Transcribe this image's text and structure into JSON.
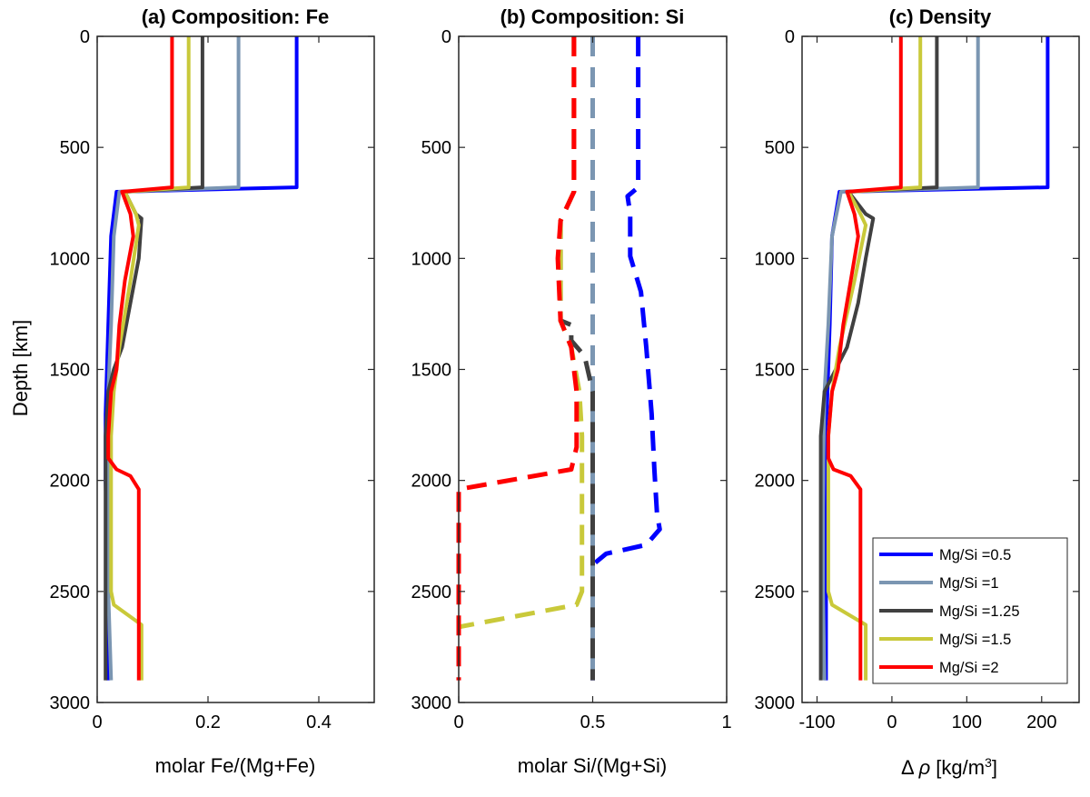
{
  "ylabel": "Depth [km]",
  "colors": {
    "Mg/Si =0.5": "#0000ff",
    "Mg/Si =1": "#7b96b2",
    "Mg/Si =1.25": "#404040",
    "Mg/Si =1.5": "#c9c93a",
    "Mg/Si =2": "#ff0000"
  },
  "legend": {
    "placement": "bottom-right of panel (c)",
    "entries": [
      "Mg/Si =0.5",
      "Mg/Si =1",
      "Mg/Si =1.25",
      "Mg/Si =1.5",
      "Mg/Si =2"
    ]
  },
  "chart_data": [
    {
      "type": "line",
      "title": "(a) Composition: Fe",
      "xlabel": "molar Fe/(Mg+Fe)",
      "ylabel": "Depth [km]",
      "xlim": [
        0,
        0.5
      ],
      "ylim": [
        0,
        3000
      ],
      "y_reversed": true,
      "xticks": [
        0,
        0.2,
        0.4
      ],
      "xtick_labels": [
        "0",
        "0.2",
        "0.4"
      ],
      "yticks": [
        0,
        500,
        1000,
        1500,
        2000,
        2500,
        3000
      ],
      "ytick_labels": [
        "0",
        "500",
        "1000",
        "1500",
        "2000",
        "2500",
        "3000"
      ],
      "dashed": false,
      "series": [
        {
          "name": "Mg/Si =0.5",
          "x": [
            0.36,
            0.36,
            0.035,
            0.025,
            0.02,
            0.015,
            0.015,
            0.02,
            0.02
          ],
          "y": [
            0,
            680,
            700,
            900,
            1300,
            1700,
            2000,
            2500,
            2900
          ]
        },
        {
          "name": "Mg/Si =1",
          "x": [
            0.255,
            0.255,
            0.04,
            0.03,
            0.025,
            0.02,
            0.02,
            0.02,
            0.025
          ],
          "y": [
            0,
            680,
            700,
            900,
            1300,
            1600,
            2000,
            2500,
            2900
          ]
        },
        {
          "name": "Mg/Si =1.25",
          "x": [
            0.19,
            0.19,
            0.05,
            0.07,
            0.08,
            0.075,
            0.06,
            0.045,
            0.03,
            0.02,
            0.015,
            0.015,
            0.015
          ],
          "y": [
            0,
            680,
            700,
            800,
            820,
            1000,
            1200,
            1400,
            1500,
            1600,
            1800,
            2400,
            2900
          ]
        },
        {
          "name": "Mg/Si =1.5",
          "x": [
            0.165,
            0.165,
            0.05,
            0.07,
            0.075,
            0.06,
            0.04,
            0.03,
            0.025,
            0.025,
            0.03,
            0.08,
            0.08
          ],
          "y": [
            0,
            680,
            700,
            800,
            850,
            1100,
            1400,
            1600,
            1800,
            2500,
            2560,
            2650,
            2900
          ]
        },
        {
          "name": "Mg/Si =2",
          "x": [
            0.135,
            0.135,
            0.045,
            0.06,
            0.065,
            0.05,
            0.04,
            0.035,
            0.025,
            0.02,
            0.02,
            0.035,
            0.06,
            0.075,
            0.075
          ],
          "y": [
            0,
            680,
            700,
            800,
            900,
            1100,
            1300,
            1500,
            1600,
            1800,
            1900,
            1950,
            1980,
            2040,
            2900
          ]
        }
      ]
    },
    {
      "type": "line",
      "title": "(b) Composition: Si",
      "xlabel": "molar Si/(Mg+Si)",
      "ylabel": "",
      "xlim": [
        0,
        1
      ],
      "ylim": [
        0,
        3000
      ],
      "y_reversed": true,
      "xticks": [
        0,
        0.5,
        1
      ],
      "xtick_labels": [
        "0",
        "0.5",
        "1"
      ],
      "yticks": [
        0,
        500,
        1000,
        1500,
        2000,
        2500,
        3000
      ],
      "ytick_labels": [
        "0",
        "500",
        "1000",
        "1500",
        "2000",
        "2500",
        "3000"
      ],
      "dashed": true,
      "series": [
        {
          "name": "Mg/Si =0.5",
          "x": [
            0.67,
            0.67,
            0.63,
            0.64,
            0.64,
            0.68,
            0.7,
            0.72,
            0.73,
            0.74,
            0.75,
            0.7,
            0.55,
            0.5,
            0.5
          ],
          "y": [
            0,
            680,
            720,
            800,
            990,
            1150,
            1400,
            1700,
            1950,
            2150,
            2220,
            2290,
            2330,
            2380,
            2900
          ]
        },
        {
          "name": "Mg/Si =1",
          "x": [
            0.5,
            0.5,
            0.5
          ],
          "y": [
            0,
            1500,
            2900
          ]
        },
        {
          "name": "Mg/Si =1.25",
          "x": [
            0.43,
            0.43,
            0.38,
            0.38,
            0.42,
            0.42,
            0.47,
            0.5,
            0.5
          ],
          "y": [
            0,
            700,
            830,
            1280,
            1300,
            1370,
            1440,
            1600,
            2900
          ]
        },
        {
          "name": "Mg/Si =1.5",
          "x": [
            0.43,
            0.43,
            0.38,
            0.38,
            0.42,
            0.45,
            0.46,
            0.46,
            0.44,
            0.0
          ],
          "y": [
            0,
            700,
            830,
            1280,
            1400,
            1600,
            1800,
            2500,
            2560,
            2660
          ]
        },
        {
          "name": "Mg/Si =2",
          "x": [
            0.43,
            0.43,
            0.38,
            0.37,
            0.38,
            0.42,
            0.44,
            0.44,
            0.42,
            0.0,
            0.0
          ],
          "y": [
            0,
            700,
            830,
            1000,
            1280,
            1400,
            1600,
            1850,
            1950,
            2040,
            2900
          ]
        }
      ]
    },
    {
      "type": "line",
      "title": "(c) Density",
      "xlabel": "Δ ρ [kg/m3]",
      "ylabel": "",
      "xlim": [
        -120,
        250
      ],
      "ylim": [
        0,
        3000
      ],
      "y_reversed": true,
      "xticks": [
        -100,
        0,
        100,
        200
      ],
      "xtick_labels": [
        "-100",
        "0",
        "100",
        "200"
      ],
      "yticks": [
        0,
        500,
        1000,
        1500,
        2000,
        2500,
        3000
      ],
      "ytick_labels": [
        "0",
        "500",
        "1000",
        "1500",
        "2000",
        "2500",
        "3000"
      ],
      "dashed": false,
      "series": [
        {
          "name": "Mg/Si =0.5",
          "x": [
            208,
            208,
            -70,
            -80,
            -83,
            -87,
            -87,
            -88,
            -88
          ],
          "y": [
            0,
            680,
            700,
            900,
            1300,
            1700,
            2000,
            2500,
            2900
          ]
        },
        {
          "name": "Mg/Si =1",
          "x": [
            115,
            115,
            -68,
            -80,
            -85,
            -90,
            -92,
            -92,
            -90
          ],
          "y": [
            0,
            680,
            700,
            900,
            1300,
            1600,
            2000,
            2500,
            2900
          ]
        },
        {
          "name": "Mg/Si =1.25",
          "x": [
            60,
            60,
            -58,
            -35,
            -25,
            -35,
            -45,
            -60,
            -75,
            -90,
            -95,
            -95,
            -95
          ],
          "y": [
            0,
            680,
            700,
            800,
            820,
            1000,
            1200,
            1400,
            1500,
            1600,
            1800,
            2400,
            2900
          ]
        },
        {
          "name": "Mg/Si =1.5",
          "x": [
            38,
            38,
            -58,
            -42,
            -35,
            -50,
            -70,
            -80,
            -85,
            -85,
            -80,
            -35,
            -35
          ],
          "y": [
            0,
            680,
            700,
            800,
            850,
            1100,
            1400,
            1600,
            1800,
            2500,
            2560,
            2650,
            2900
          ]
        },
        {
          "name": "Mg/Si =2",
          "x": [
            12,
            12,
            -60,
            -50,
            -45,
            -55,
            -65,
            -72,
            -80,
            -85,
            -85,
            -78,
            -55,
            -42,
            -42
          ],
          "y": [
            0,
            680,
            700,
            800,
            900,
            1100,
            1300,
            1500,
            1600,
            1800,
            1900,
            1950,
            1980,
            2040,
            2900
          ]
        }
      ]
    }
  ]
}
